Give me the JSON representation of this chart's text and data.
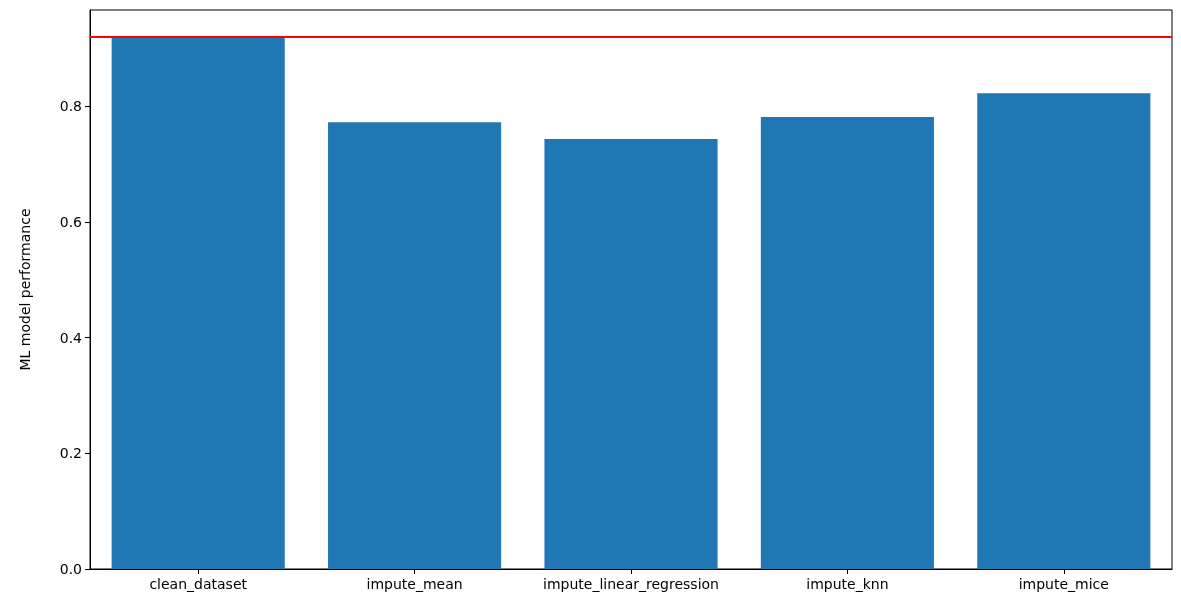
{
  "chart_data": {
    "type": "bar",
    "ylabel": "ML model performance",
    "categories": [
      "clean_dataset",
      "impute_mean",
      "impute_linear_regression",
      "impute_knn",
      "impute_mice"
    ],
    "values": [
      0.918,
      0.772,
      0.743,
      0.781,
      0.822
    ],
    "color": "#1f77b4",
    "ylim": [
      0,
      0.966
    ],
    "yticks": [
      {
        "value": 0,
        "label": "0.0"
      },
      0.2,
      0.4,
      0.6,
      0.8
    ],
    "ref_lines": [
      {
        "axis": "y",
        "value": 0.918,
        "color": "#ff0000",
        "line_style": "solid"
      }
    ],
    "grid": false
  }
}
